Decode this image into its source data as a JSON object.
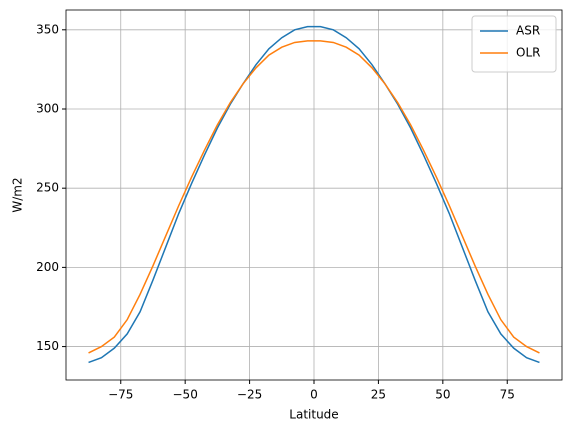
{
  "chart_data": {
    "type": "line",
    "x": [
      -87.5,
      -82.5,
      -77.5,
      -72.5,
      -67.5,
      -62.5,
      -57.5,
      -52.5,
      -47.5,
      -42.5,
      -37.5,
      -32.5,
      -27.5,
      -22.5,
      -17.5,
      -12.5,
      -7.5,
      -2.5,
      2.5,
      7.5,
      12.5,
      17.5,
      22.5,
      27.5,
      32.5,
      37.5,
      42.5,
      47.5,
      52.5,
      57.5,
      62.5,
      67.5,
      72.5,
      77.5,
      82.5,
      87.5
    ],
    "series": [
      {
        "name": "ASR",
        "color": "#1f77b4",
        "values": [
          140,
          143,
          149,
          158,
          172,
          192,
          213,
          234,
          253,
          271,
          288,
          303,
          316,
          328,
          338,
          345,
          350,
          352,
          352,
          350,
          345,
          338,
          328,
          316,
          303,
          288,
          271,
          253,
          234,
          213,
          192,
          172,
          158,
          149,
          143,
          140
        ]
      },
      {
        "name": "OLR",
        "color": "#ff7f0e",
        "values": [
          146,
          150,
          156,
          167,
          183,
          201,
          220,
          239,
          257,
          274,
          290,
          304,
          316,
          326,
          334,
          339,
          342,
          343,
          343,
          342,
          339,
          334,
          326,
          316,
          304,
          290,
          274,
          257,
          239,
          220,
          201,
          183,
          167,
          156,
          150,
          146
        ]
      }
    ],
    "xlabel": "Latitude",
    "ylabel": "W/m2",
    "xlim": [
      -96.25,
      96.25
    ],
    "ylim": [
      128.9,
      362.5
    ],
    "xticks": [
      {
        "value": -75,
        "label": "−75"
      },
      {
        "value": -50,
        "label": "−50"
      },
      {
        "value": -25,
        "label": "−25"
      },
      0,
      25,
      50,
      75
    ],
    "yticks": [
      150,
      200,
      250,
      300,
      350
    ],
    "grid": true,
    "legend": "upper right"
  }
}
